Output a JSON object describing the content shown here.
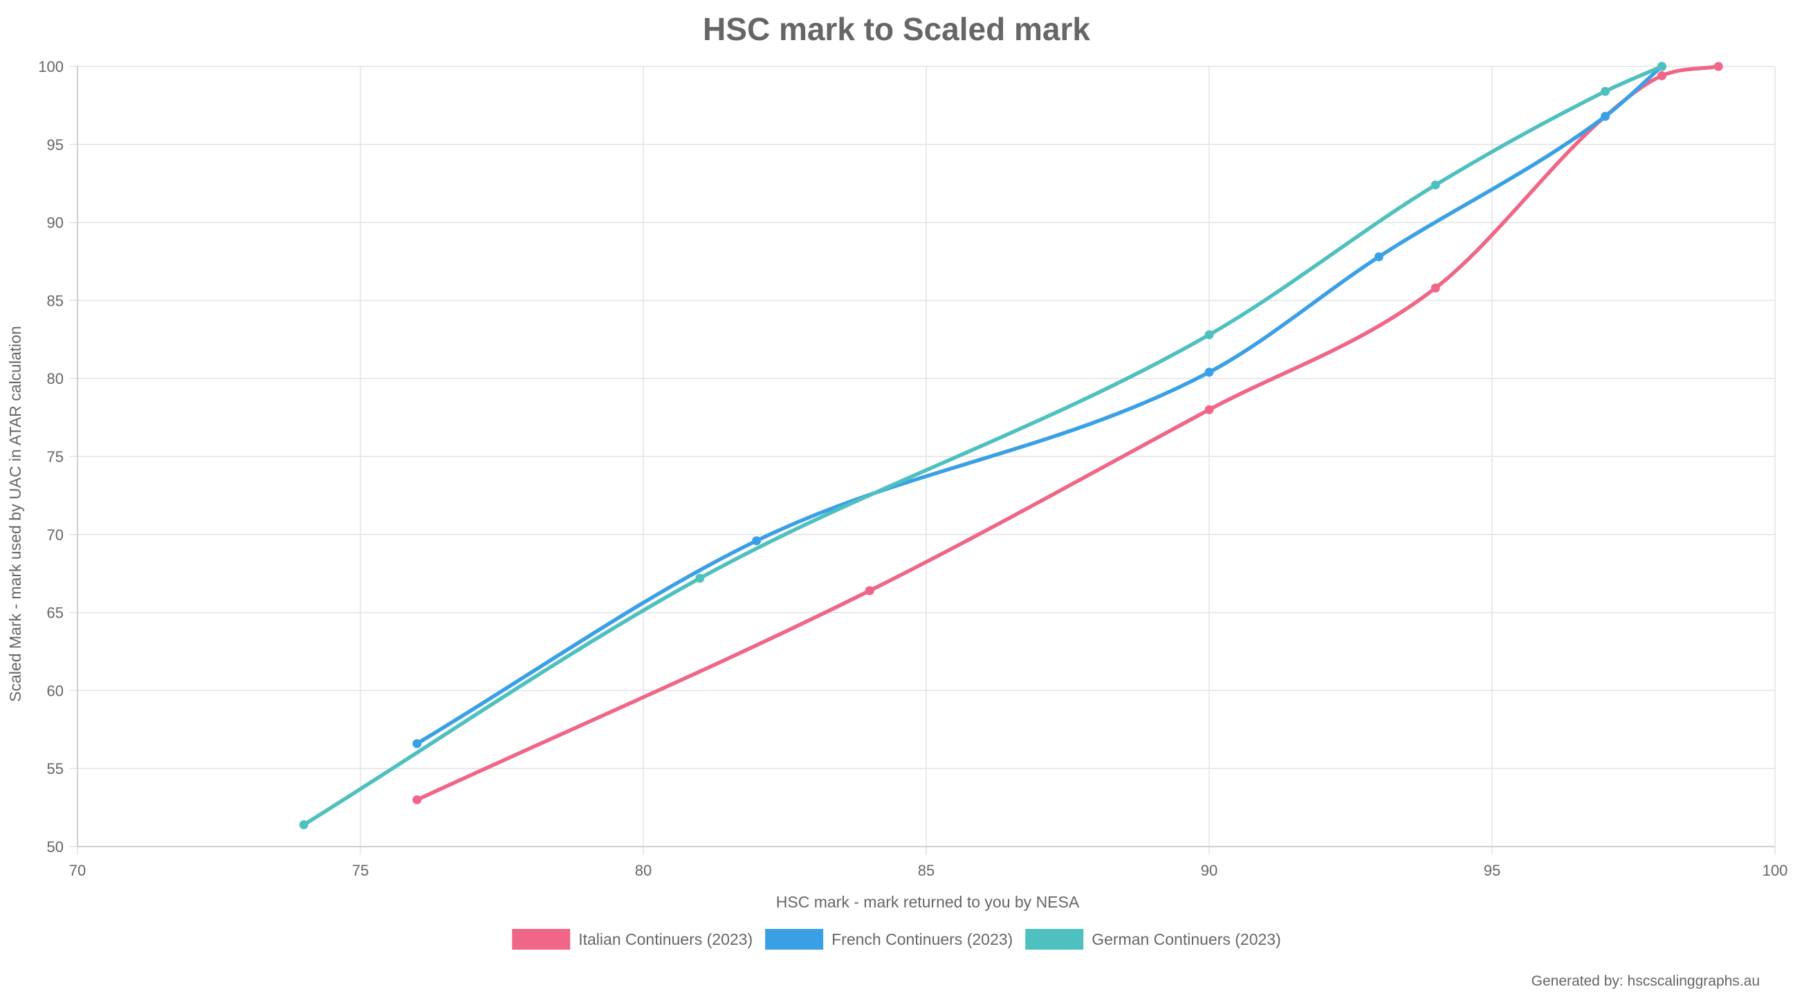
{
  "chart_data": {
    "type": "line",
    "title": "HSC mark to Scaled mark",
    "xlabel": "HSC mark - mark returned to you by NESA",
    "ylabel": "Scaled Mark - mark used by UAC in ATAR calculation",
    "xlim": [
      70,
      100
    ],
    "ylim": [
      50,
      100
    ],
    "xticks": [
      "70",
      "75",
      "80",
      "85",
      "90",
      "95",
      "100"
    ],
    "yticks": [
      "50",
      "55",
      "60",
      "65",
      "70",
      "75",
      "80",
      "85",
      "90",
      "95",
      "100"
    ],
    "grid": true,
    "legend_position": "bottom",
    "series": [
      {
        "name": "Italian Continuers (2023)",
        "color": "#f06687",
        "points": [
          [
            76,
            53.0
          ],
          [
            84,
            66.4
          ],
          [
            90,
            78.0
          ],
          [
            94,
            85.8
          ],
          [
            97,
            96.8
          ],
          [
            98,
            99.4
          ],
          [
            99,
            100.0
          ]
        ]
      },
      {
        "name": "French Continuers (2023)",
        "color": "#3aa0e6",
        "points": [
          [
            76,
            56.6
          ],
          [
            82,
            69.6
          ],
          [
            90,
            80.4
          ],
          [
            93,
            87.8
          ],
          [
            97,
            96.8
          ],
          [
            98,
            100.0
          ]
        ]
      },
      {
        "name": "German Continuers (2023)",
        "color": "#4ec0c0",
        "points": [
          [
            74,
            51.4
          ],
          [
            81,
            67.2
          ],
          [
            90,
            82.8
          ],
          [
            94,
            92.4
          ],
          [
            97,
            98.4
          ],
          [
            98,
            100.0
          ]
        ]
      }
    ]
  },
  "footer": {
    "credit": "Generated by: hscscalinggraphs.au"
  }
}
